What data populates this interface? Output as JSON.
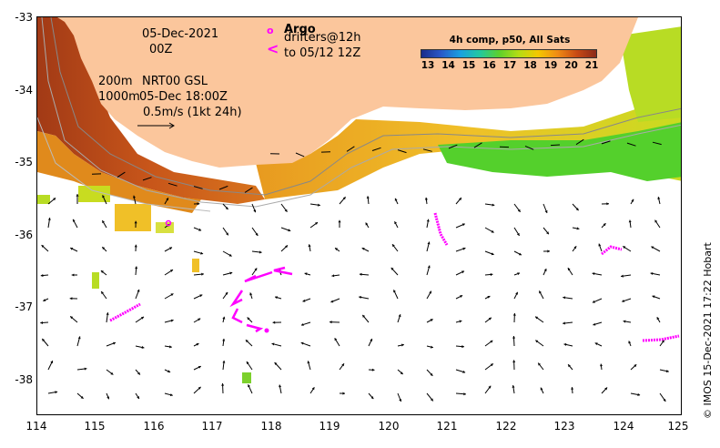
{
  "map": {
    "lon_range": [
      114,
      125
    ],
    "lat_range": [
      -38.5,
      -33
    ],
    "x_ticks": [
      "114",
      "115",
      "116",
      "117",
      "118",
      "119",
      "120",
      "121",
      "122",
      "123",
      "124",
      "125"
    ],
    "y_ticks": [
      "-33",
      "-34",
      "-35",
      "-36",
      "-37",
      "-38"
    ],
    "land_color": "#fbc69c",
    "vector_color": "#000000",
    "track_color": "#ff00ff"
  },
  "annotations": {
    "date": "05-Dec-2021",
    "time": "00Z",
    "depth_200": "200m",
    "depth_1000": "1000m",
    "product": "NRT00 GSL",
    "product_time": "05-Dec 18:00Z",
    "scale": "0.5m/s (1kt 24h)"
  },
  "argo": {
    "title": "Argo",
    "marker": "o",
    "drifters": "drifters@12h",
    "drifters_marker": "<",
    "to": "to 05/12 12Z"
  },
  "colorbar": {
    "title": "4h comp, p50, All Sats",
    "labels": [
      "13",
      "14",
      "15",
      "16",
      "17",
      "18",
      "19",
      "20",
      "21"
    ],
    "colors": [
      "#1a2c8a",
      "#2a58c8",
      "#1aa0e0",
      "#22c8a0",
      "#5cd02c",
      "#b4dc14",
      "#f4c800",
      "#f08c14",
      "#c84a14",
      "#8a2a1a"
    ]
  },
  "credit": "© IMOS 15-Dec-2021 17:22 Hobart"
}
